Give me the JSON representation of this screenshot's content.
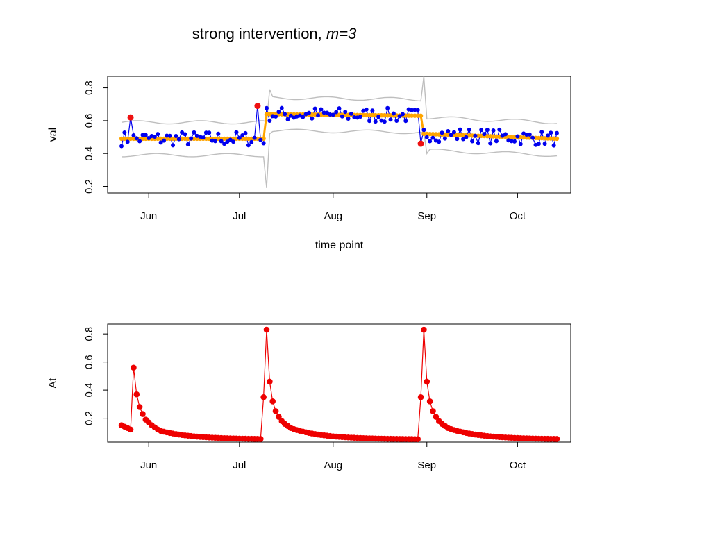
{
  "title": {
    "main": "strong intervention,",
    "m_label": "m=3"
  },
  "colors": {
    "observed": "#0000ee",
    "fitted": "#ffa500",
    "band": "#bebebe",
    "highlight": "#ee1111",
    "at": "#ee0000"
  },
  "chart_data": [
    {
      "id": "top",
      "type": "line",
      "xlabel": "time point",
      "ylabel": "val",
      "ylim": [
        0.16,
        0.87
      ],
      "yticks": [
        0.2,
        0.4,
        0.6,
        0.8
      ],
      "ytick_labels": [
        "0.2",
        "0.4",
        "0.6",
        "0.8"
      ],
      "xticks": [
        "Jun",
        "Jul",
        "Aug",
        "Sep",
        "Oct"
      ],
      "x_range": [
        "2020-05-23",
        "2020-10-14"
      ],
      "xtick_dates": [
        "2020-06-01",
        "2020-07-01",
        "2020-08-01",
        "2020-09-01",
        "2020-10-01"
      ],
      "regime_breaks": [
        "2020-07-10",
        "2020-08-31"
      ],
      "observed_noise_amplitude": 0.045,
      "fitted_levels": [
        {
          "start": "2020-05-23",
          "end": "2020-07-09",
          "value": 0.49
        },
        {
          "start": "2020-07-10",
          "end": "2020-08-30",
          "value_start": 0.64,
          "value_end": 0.63
        },
        {
          "start": "2020-08-31",
          "end": "2020-10-14",
          "value_start": 0.52,
          "value_end": 0.49
        }
      ],
      "band_half_width": 0.1,
      "highlight_points": [
        {
          "date": "2020-05-26",
          "value": 0.62
        },
        {
          "date": "2020-07-07",
          "value": 0.69
        },
        {
          "date": "2020-08-30",
          "value": 0.46
        }
      ],
      "series": [
        {
          "kind": "observed",
          "marker": "point",
          "style": "line+points"
        },
        {
          "kind": "fitted",
          "marker": "point",
          "style": "thick"
        },
        {
          "kind": "band",
          "style": "upper/lower"
        }
      ]
    },
    {
      "id": "bottom",
      "type": "line",
      "xlabel": "",
      "ylabel": "At",
      "ylim": [
        0.03,
        0.87
      ],
      "yticks": [
        0.2,
        0.4,
        0.6,
        0.8
      ],
      "ytick_labels": [
        "0.2",
        "0.4",
        "0.6",
        "0.8"
      ],
      "xticks": [
        "Jun",
        "Jul",
        "Aug",
        "Sep",
        "Oct"
      ],
      "x_range": [
        "2020-05-23",
        "2020-10-14"
      ],
      "xtick_dates": [
        "2020-06-01",
        "2020-07-01",
        "2020-08-01",
        "2020-09-01",
        "2020-10-01"
      ],
      "spikes": [
        {
          "start": "2020-05-27",
          "values": [
            0.56,
            0.37,
            0.28,
            0.23,
            0.19,
            0.17,
            0.15,
            0.135,
            0.12,
            0.11
          ]
        },
        {
          "start": "2020-07-09",
          "values": [
            0.35,
            0.83,
            0.46,
            0.32,
            0.25,
            0.21,
            0.18,
            0.16,
            0.145,
            0.13
          ]
        },
        {
          "start": "2020-08-30",
          "values": [
            0.35,
            0.83,
            0.46,
            0.32,
            0.25,
            0.21,
            0.18,
            0.16,
            0.145,
            0.13
          ]
        }
      ],
      "initial_values": [
        0.15,
        0.14,
        0.13,
        0.12
      ],
      "floor_value": 0.05
    }
  ]
}
